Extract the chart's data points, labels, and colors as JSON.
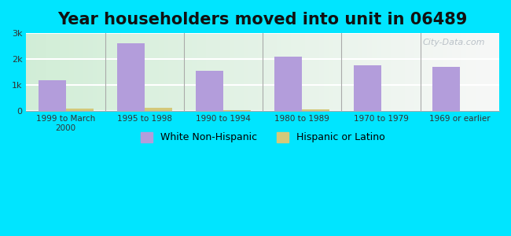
{
  "title": "Year householders moved into unit in 06489",
  "categories": [
    "1999 to March\n2000",
    "1995 to 1998",
    "1990 to 1994",
    "1980 to 1989",
    "1970 to 1979",
    "1969 or earlier"
  ],
  "white_values": [
    1200,
    2600,
    1550,
    2100,
    1750,
    1700
  ],
  "hispanic_values": [
    100,
    130,
    30,
    70,
    0,
    0
  ],
  "white_color": "#b39ddb",
  "hispanic_color": "#d4c97a",
  "ylim": [
    0,
    3000
  ],
  "yticks": [
    0,
    1000,
    2000,
    3000
  ],
  "ytick_labels": [
    "0",
    "1k",
    "2k",
    "3k"
  ],
  "background_outer": "#00e5ff",
  "title_fontsize": 15,
  "bar_width": 0.35,
  "watermark": "City-Data.com"
}
